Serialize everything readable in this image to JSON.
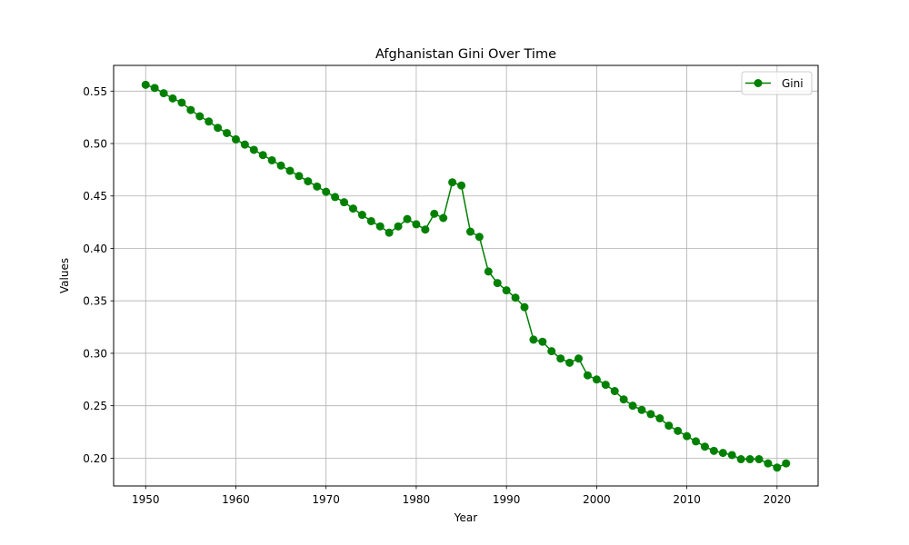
{
  "chart_data": {
    "type": "line",
    "title": "Afghanistan Gini Over Time",
    "xlabel": "Year",
    "ylabel": "Values",
    "xlim": [
      1946.45,
      2024.55
    ],
    "ylim": [
      0.1735,
      0.5745
    ],
    "xticks": [
      1950,
      1960,
      1970,
      1980,
      1990,
      2000,
      2010,
      2020
    ],
    "yticks": [
      0.2,
      0.25,
      0.3,
      0.35,
      0.4,
      0.45,
      0.5,
      0.55
    ],
    "ytick_labels": [
      "0.20",
      "0.25",
      "0.30",
      "0.35",
      "0.40",
      "0.45",
      "0.50",
      "0.55"
    ],
    "grid": true,
    "legend_position": "top-right",
    "series": [
      {
        "name": "Gini",
        "color": "#008000",
        "marker": "circle",
        "x": [
          1950,
          1951,
          1952,
          1953,
          1954,
          1955,
          1956,
          1957,
          1958,
          1959,
          1960,
          1961,
          1962,
          1963,
          1964,
          1965,
          1966,
          1967,
          1968,
          1969,
          1970,
          1971,
          1972,
          1973,
          1974,
          1975,
          1976,
          1977,
          1978,
          1979,
          1980,
          1981,
          1982,
          1983,
          1984,
          1985,
          1986,
          1987,
          1988,
          1989,
          1990,
          1991,
          1992,
          1993,
          1994,
          1995,
          1996,
          1997,
          1998,
          1999,
          2000,
          2001,
          2002,
          2003,
          2004,
          2005,
          2006,
          2007,
          2008,
          2009,
          2010,
          2011,
          2012,
          2013,
          2014,
          2015,
          2016,
          2017,
          2018,
          2019,
          2020,
          2021
        ],
        "y": [
          0.556,
          0.553,
          0.548,
          0.543,
          0.539,
          0.532,
          0.526,
          0.521,
          0.515,
          0.51,
          0.504,
          0.499,
          0.494,
          0.489,
          0.484,
          0.479,
          0.474,
          0.469,
          0.464,
          0.459,
          0.454,
          0.449,
          0.444,
          0.438,
          0.432,
          0.426,
          0.421,
          0.415,
          0.421,
          0.428,
          0.423,
          0.418,
          0.433,
          0.429,
          0.463,
          0.46,
          0.416,
          0.411,
          0.378,
          0.367,
          0.36,
          0.353,
          0.344,
          0.313,
          0.311,
          0.302,
          0.295,
          0.291,
          0.295,
          0.279,
          0.275,
          0.27,
          0.264,
          0.256,
          0.25,
          0.246,
          0.242,
          0.238,
          0.231,
          0.226,
          0.221,
          0.216,
          0.211,
          0.207,
          0.205,
          0.203,
          0.199,
          0.199,
          0.199,
          0.195,
          0.191,
          0.195
        ]
      }
    ]
  }
}
